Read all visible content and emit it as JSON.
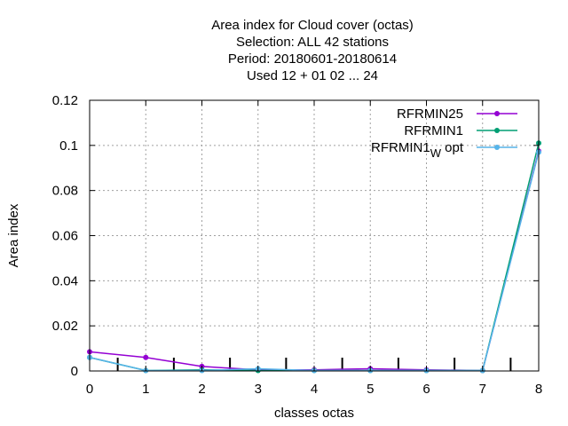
{
  "chart_data": {
    "type": "line",
    "title_lines": [
      "Area index  for Cloud cover (octas)",
      "Selection: ALL     42 stations",
      "Period: 20180601-20180614",
      "Used  12 + 01 02 ... 24"
    ],
    "xlabel": "classes octas",
    "ylabel": "Area index",
    "xlim": [
      0,
      8
    ],
    "ylim": [
      0,
      0.12
    ],
    "x_ticks": [
      0,
      1,
      2,
      3,
      4,
      5,
      6,
      7,
      8
    ],
    "y_ticks": [
      0,
      0.02,
      0.04,
      0.06,
      0.08,
      0.1,
      0.12
    ],
    "y_tick_labels": [
      "0",
      "0.02",
      "0.04",
      "0.06",
      "0.08",
      "0.1",
      "0.12"
    ],
    "grid": true,
    "legend_position": "top-right",
    "x": [
      0,
      1,
      2,
      3,
      4,
      5,
      6,
      7,
      8
    ],
    "series": [
      {
        "name": "RFRMIN25",
        "name_sub": "",
        "name_suffix": "",
        "color": "#9400d3",
        "values": [
          0.0085,
          0.006,
          0.002,
          0.0005,
          0.0005,
          0.001,
          0.0005,
          0.0002,
          0.0975
        ]
      },
      {
        "name": "RFRMIN1",
        "name_sub": "",
        "name_suffix": "",
        "color": "#009e73",
        "values": [
          0.006,
          0.0002,
          0.0005,
          0.0002,
          0.0002,
          0.0002,
          0.0002,
          0.0002,
          0.101
        ]
      },
      {
        "name": "RFRMIN1",
        "name_sub": "W",
        "name_suffix": "opt",
        "color": "#56b4e9",
        "values": [
          0.006,
          0.0002,
          0.0002,
          0.001,
          0.0002,
          0.0002,
          0.0002,
          0.0002,
          0.097
        ]
      }
    ],
    "category_boundaries": [
      0.5,
      1.5,
      2.5,
      3.5,
      4.5,
      5.5,
      6.5,
      7.5
    ]
  }
}
